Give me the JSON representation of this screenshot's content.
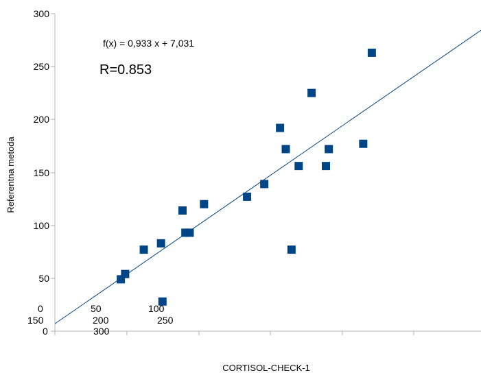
{
  "chart_data": {
    "type": "scatter",
    "title": "",
    "xlabel": "CORTISOL-CHECK-1",
    "ylabel": "Referentna metoda",
    "xlim": [
      0,
      300
    ],
    "ylim": [
      0,
      300
    ],
    "y_ticks": [
      "0",
      "50",
      "100",
      "150",
      "200",
      "250",
      "300"
    ],
    "x_tick_labels_rows": [
      [
        "0",
        "50",
        "100"
      ],
      [
        "150",
        "200",
        "250"
      ],
      [
        "0",
        "300"
      ]
    ],
    "trendline": {
      "slope": 0.933,
      "intercept": 7.031,
      "equation": "f(x) = 0,933 x + 7,031"
    },
    "r_label": "R=0.853",
    "marker_color": "#004586",
    "line_color": "#004586",
    "series": [
      {
        "points": [
          [
            46,
            49
          ],
          [
            49,
            54
          ],
          [
            62,
            77
          ],
          [
            74,
            83
          ],
          [
            75,
            28
          ],
          [
            89,
            114
          ],
          [
            91,
            93
          ],
          [
            94,
            93
          ],
          [
            104,
            120
          ],
          [
            134,
            127
          ],
          [
            146,
            139
          ],
          [
            157,
            192
          ],
          [
            161,
            172
          ],
          [
            165,
            77
          ],
          [
            170,
            156
          ],
          [
            179,
            225
          ],
          [
            189,
            156
          ],
          [
            191,
            172
          ],
          [
            215,
            177
          ],
          [
            221,
            263
          ]
        ]
      }
    ]
  }
}
